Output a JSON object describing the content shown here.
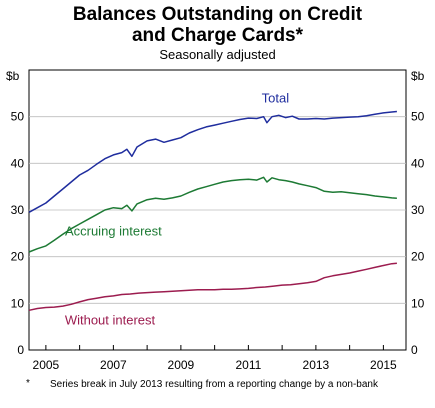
{
  "chart_data": {
    "type": "line",
    "title_line1": "Balances Outstanding on Credit",
    "title_line2": "and Charge Cards*",
    "subtitle": "Seasonally adjusted",
    "ylabel_left": "$b",
    "ylabel_right": "$b",
    "ylim": [
      0,
      60
    ],
    "yticks": [
      0,
      10,
      20,
      30,
      40,
      50
    ],
    "xlim": [
      2004.5,
      2015.67
    ],
    "xticks": [
      2005,
      2007,
      2009,
      2011,
      2013,
      2015
    ],
    "xtick_labels": [
      "2005",
      "2007",
      "2009",
      "2011",
      "2013",
      "2015"
    ],
    "grid": true,
    "series": [
      {
        "name": "Total",
        "color": "#1f2d9e",
        "label_at": [
          2011.8,
          53
        ],
        "points": [
          [
            2004.5,
            29.5
          ],
          [
            2004.75,
            30.5
          ],
          [
            2005.0,
            31.5
          ],
          [
            2005.25,
            33.0
          ],
          [
            2005.5,
            34.5
          ],
          [
            2005.75,
            36.0
          ],
          [
            2006.0,
            37.5
          ],
          [
            2006.25,
            38.5
          ],
          [
            2006.5,
            39.8
          ],
          [
            2006.75,
            41.0
          ],
          [
            2007.0,
            41.8
          ],
          [
            2007.25,
            42.3
          ],
          [
            2007.4,
            43.0
          ],
          [
            2007.55,
            41.5
          ],
          [
            2007.7,
            43.5
          ],
          [
            2008.0,
            44.8
          ],
          [
            2008.25,
            45.2
          ],
          [
            2008.5,
            44.5
          ],
          [
            2008.75,
            45.0
          ],
          [
            2009.0,
            45.5
          ],
          [
            2009.25,
            46.5
          ],
          [
            2009.5,
            47.2
          ],
          [
            2009.75,
            47.8
          ],
          [
            2010.0,
            48.2
          ],
          [
            2010.25,
            48.6
          ],
          [
            2010.5,
            49.0
          ],
          [
            2010.75,
            49.4
          ],
          [
            2011.0,
            49.7
          ],
          [
            2011.25,
            49.6
          ],
          [
            2011.45,
            50.0
          ],
          [
            2011.55,
            48.7
          ],
          [
            2011.7,
            50.0
          ],
          [
            2011.9,
            50.3
          ],
          [
            2012.1,
            49.8
          ],
          [
            2012.3,
            50.1
          ],
          [
            2012.5,
            49.5
          ],
          [
            2012.75,
            49.5
          ],
          [
            2013.0,
            49.6
          ],
          [
            2013.25,
            49.5
          ],
          [
            2013.5,
            49.7
          ],
          [
            2013.75,
            49.8
          ],
          [
            2014.0,
            49.9
          ],
          [
            2014.25,
            50.0
          ],
          [
            2014.5,
            50.2
          ],
          [
            2014.75,
            50.5
          ],
          [
            2015.0,
            50.8
          ],
          [
            2015.25,
            51.0
          ],
          [
            2015.4,
            51.1
          ]
        ]
      },
      {
        "name": "Accruing interest",
        "color": "#1d7a34",
        "label_at": [
          2007.0,
          24.5
        ],
        "points": [
          [
            2004.5,
            21.0
          ],
          [
            2004.75,
            21.7
          ],
          [
            2005.0,
            22.3
          ],
          [
            2005.25,
            23.5
          ],
          [
            2005.5,
            24.8
          ],
          [
            2005.75,
            26.0
          ],
          [
            2006.0,
            27.0
          ],
          [
            2006.25,
            28.0
          ],
          [
            2006.5,
            29.0
          ],
          [
            2006.75,
            30.0
          ],
          [
            2007.0,
            30.5
          ],
          [
            2007.25,
            30.3
          ],
          [
            2007.4,
            31.0
          ],
          [
            2007.55,
            29.8
          ],
          [
            2007.7,
            31.3
          ],
          [
            2008.0,
            32.2
          ],
          [
            2008.25,
            32.5
          ],
          [
            2008.5,
            32.3
          ],
          [
            2008.75,
            32.6
          ],
          [
            2009.0,
            33.0
          ],
          [
            2009.25,
            33.8
          ],
          [
            2009.5,
            34.5
          ],
          [
            2009.75,
            35.0
          ],
          [
            2010.0,
            35.5
          ],
          [
            2010.25,
            36.0
          ],
          [
            2010.5,
            36.3
          ],
          [
            2010.75,
            36.5
          ],
          [
            2011.0,
            36.6
          ],
          [
            2011.25,
            36.4
          ],
          [
            2011.45,
            37.0
          ],
          [
            2011.55,
            36.0
          ],
          [
            2011.7,
            36.9
          ],
          [
            2011.9,
            36.5
          ],
          [
            2012.1,
            36.3
          ],
          [
            2012.3,
            36.0
          ],
          [
            2012.5,
            35.6
          ],
          [
            2012.75,
            35.2
          ],
          [
            2013.0,
            34.8
          ],
          [
            2013.25,
            34.0
          ],
          [
            2013.5,
            33.8
          ],
          [
            2013.75,
            33.9
          ],
          [
            2014.0,
            33.7
          ],
          [
            2014.25,
            33.5
          ],
          [
            2014.5,
            33.3
          ],
          [
            2014.75,
            33.0
          ],
          [
            2015.0,
            32.8
          ],
          [
            2015.25,
            32.6
          ],
          [
            2015.4,
            32.5
          ]
        ]
      },
      {
        "name": "Without interest",
        "color": "#9c1c4f",
        "label_at": [
          2006.9,
          5.5
        ],
        "points": [
          [
            2004.5,
            8.5
          ],
          [
            2004.75,
            8.9
          ],
          [
            2005.0,
            9.1
          ],
          [
            2005.25,
            9.2
          ],
          [
            2005.5,
            9.4
          ],
          [
            2005.75,
            9.8
          ],
          [
            2006.0,
            10.3
          ],
          [
            2006.25,
            10.8
          ],
          [
            2006.5,
            11.1
          ],
          [
            2006.75,
            11.4
          ],
          [
            2007.0,
            11.6
          ],
          [
            2007.25,
            11.9
          ],
          [
            2007.5,
            12.0
          ],
          [
            2007.75,
            12.2
          ],
          [
            2008.0,
            12.3
          ],
          [
            2008.25,
            12.4
          ],
          [
            2008.5,
            12.5
          ],
          [
            2008.75,
            12.6
          ],
          [
            2009.0,
            12.7
          ],
          [
            2009.25,
            12.8
          ],
          [
            2009.5,
            12.9
          ],
          [
            2009.75,
            12.9
          ],
          [
            2010.0,
            12.9
          ],
          [
            2010.25,
            13.0
          ],
          [
            2010.5,
            13.0
          ],
          [
            2010.75,
            13.1
          ],
          [
            2011.0,
            13.2
          ],
          [
            2011.25,
            13.4
          ],
          [
            2011.5,
            13.5
          ],
          [
            2011.75,
            13.7
          ],
          [
            2012.0,
            13.9
          ],
          [
            2012.25,
            14.0
          ],
          [
            2012.5,
            14.2
          ],
          [
            2012.75,
            14.4
          ],
          [
            2013.0,
            14.7
          ],
          [
            2013.25,
            15.5
          ],
          [
            2013.5,
            15.9
          ],
          [
            2013.75,
            16.2
          ],
          [
            2014.0,
            16.5
          ],
          [
            2014.25,
            16.9
          ],
          [
            2014.5,
            17.3
          ],
          [
            2014.75,
            17.7
          ],
          [
            2015.0,
            18.1
          ],
          [
            2015.25,
            18.5
          ],
          [
            2015.4,
            18.6
          ]
        ]
      }
    ]
  },
  "footnote": {
    "marker": "*",
    "text": "Series break in July 2013 resulting from a reporting change by a non-bank"
  }
}
